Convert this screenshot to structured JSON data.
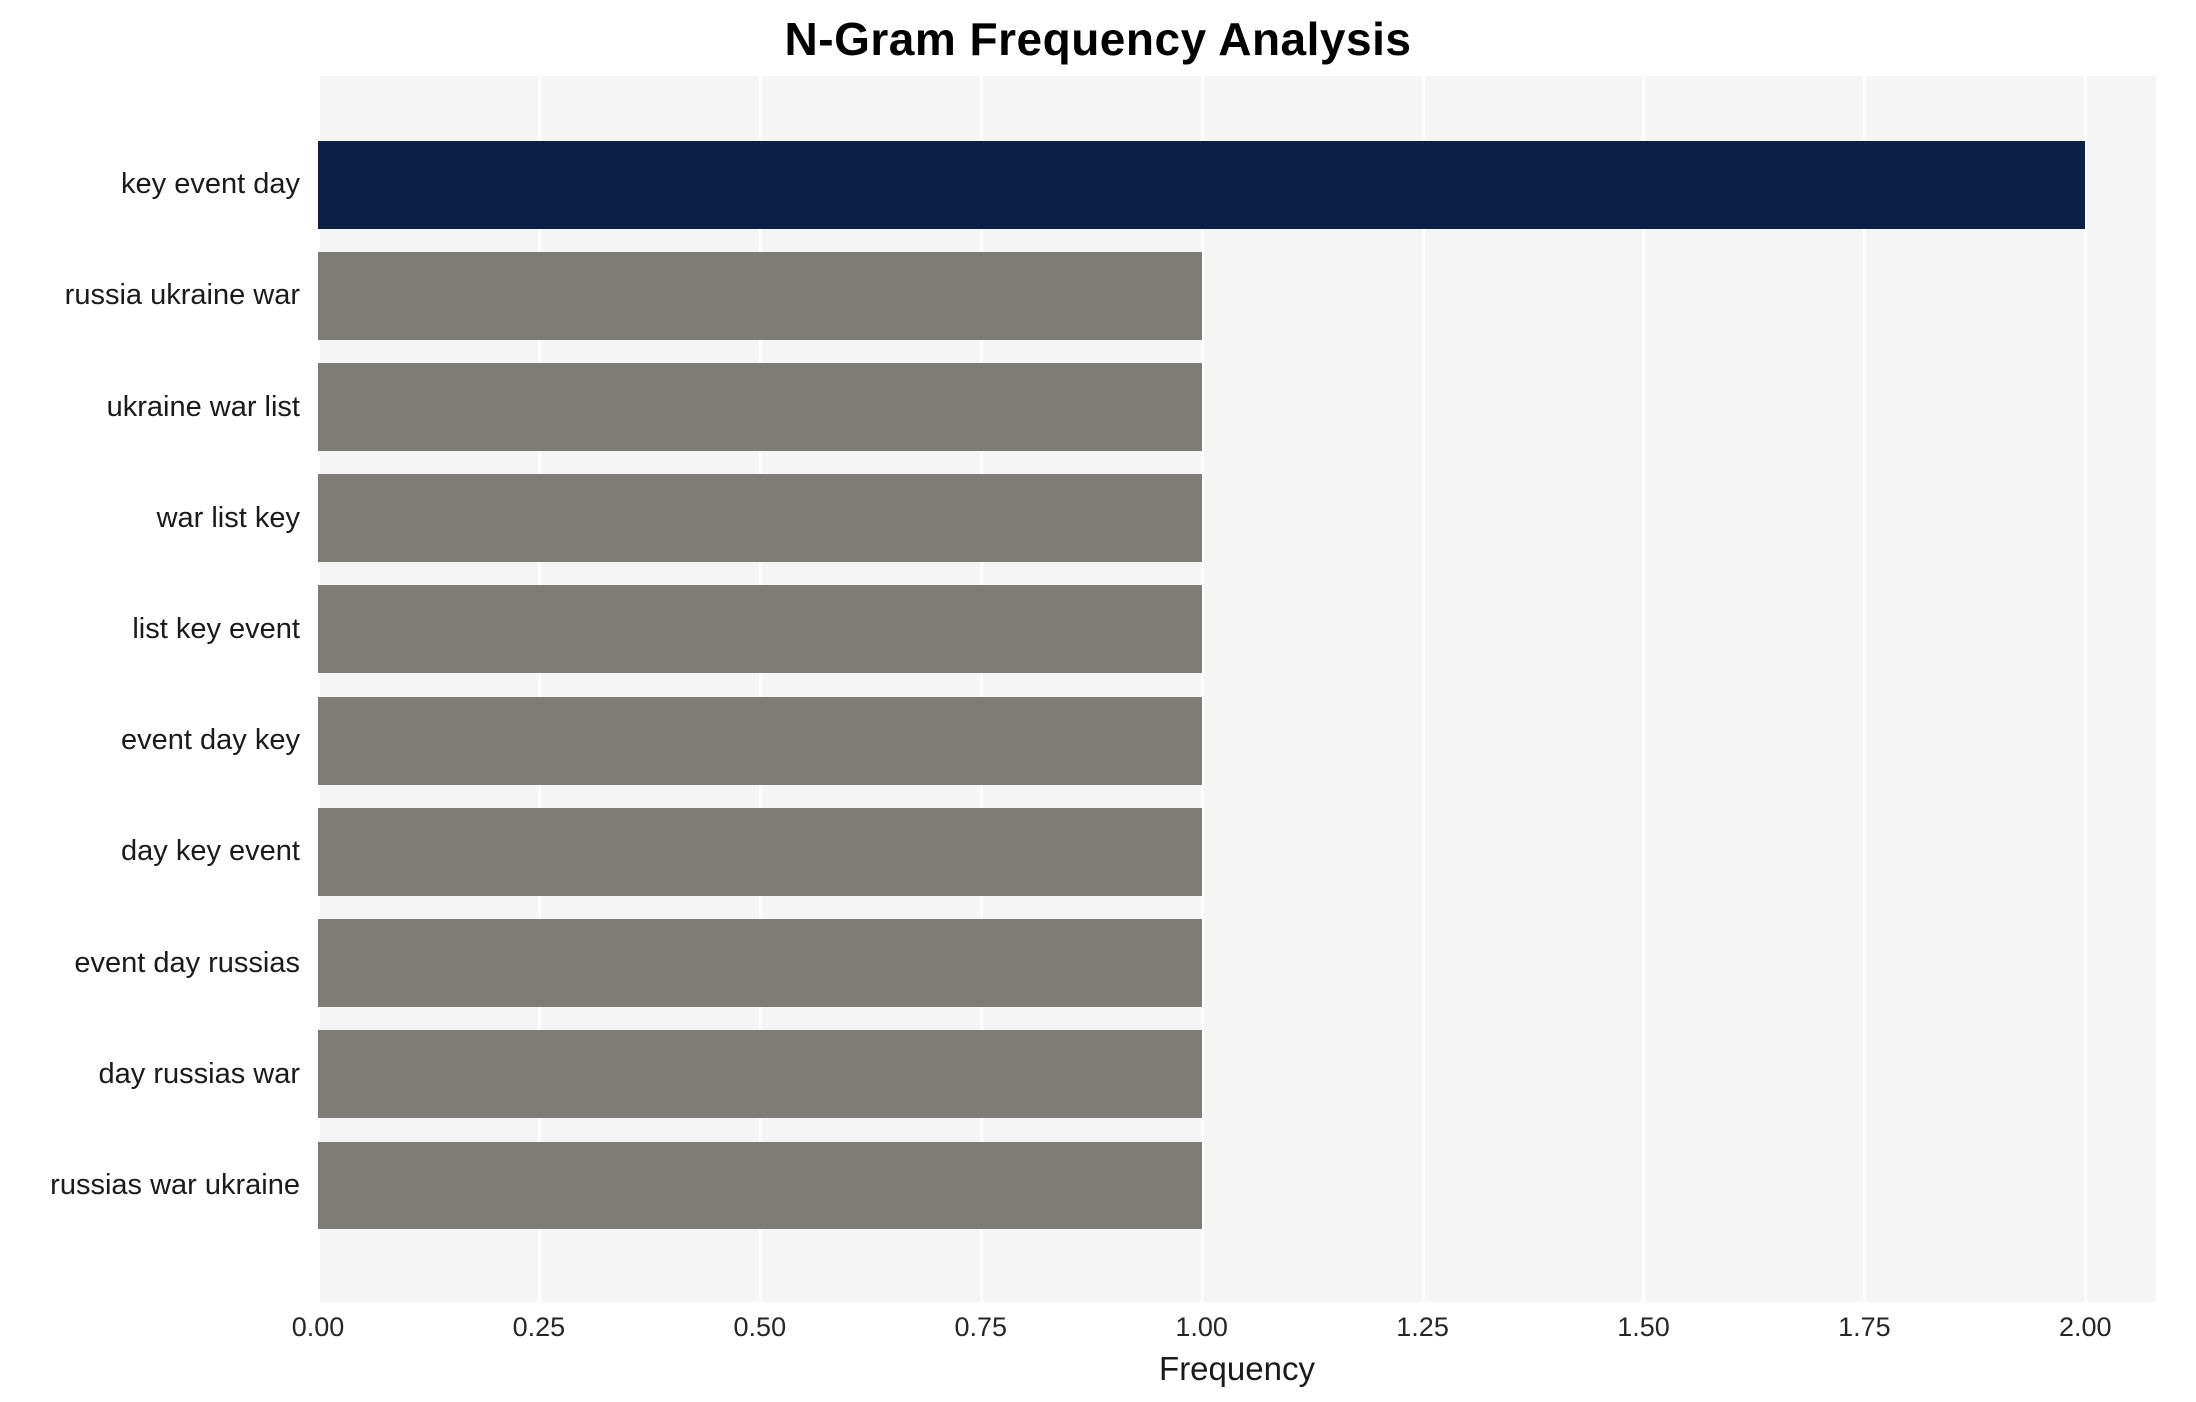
{
  "title": "N-Gram Frequency Analysis",
  "chart_data": {
    "type": "bar",
    "orientation": "horizontal",
    "title": "N-Gram Frequency Analysis",
    "categories": [
      "key event day",
      "russia ukraine war",
      "ukraine war list",
      "war list key",
      "list key event",
      "event day key",
      "day key event",
      "event day russias",
      "day russias war",
      "russias war ukraine"
    ],
    "values": [
      2,
      1,
      1,
      1,
      1,
      1,
      1,
      1,
      1,
      1
    ],
    "xlabel": "Frequency",
    "ylabel": "",
    "xlim": [
      0,
      2.08
    ],
    "xticks": [
      0,
      0.25,
      0.5,
      0.75,
      1,
      1.25,
      1.5,
      1.75,
      2
    ],
    "xtick_labels": [
      "0.00",
      "0.25",
      "0.50",
      "0.75",
      "1.00",
      "1.25",
      "1.50",
      "1.75",
      "2.00"
    ],
    "grid": true,
    "legend": false,
    "colors": {
      "highlight_bar": "#0a2145",
      "default_bar": "#7d7c77",
      "plot_background": "#f5f5f5",
      "gridline": "#ffffff",
      "page_background": "#ffffff",
      "text": "#1a1a1a"
    }
  }
}
